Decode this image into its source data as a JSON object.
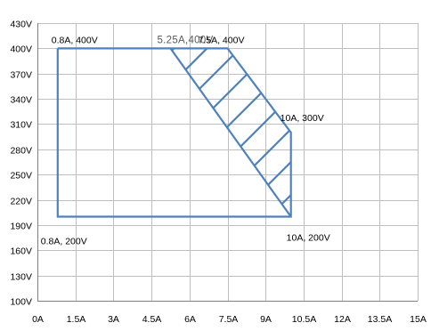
{
  "chart_data": {
    "type": "line",
    "title": "",
    "xlabel": "",
    "ylabel": "",
    "x_ticks": [
      "0A",
      "1.5A",
      "3A",
      "4.5A",
      "6A",
      "7.5A",
      "9A",
      "10.5A",
      "12A",
      "13.5A",
      "15A"
    ],
    "y_ticks": [
      "100V",
      "130V",
      "160V",
      "190V",
      "220V",
      "250V",
      "280V",
      "310V",
      "340V",
      "370V",
      "400V",
      "430V"
    ],
    "xlim": [
      0,
      15
    ],
    "ylim": [
      100,
      430
    ],
    "grid": true,
    "colors": {
      "series": "#4f81bd",
      "grid": "#bfbfbf",
      "axis": "#7f7f7f"
    },
    "series": [
      {
        "type": "polyline",
        "x": [
          0.8,
          5.25,
          7.5,
          10,
          10,
          0.8,
          0.8
        ],
        "y": [
          400,
          400,
          400,
          300,
          200,
          200,
          400
        ]
      },
      {
        "type": "hatched-region",
        "x": [
          5.25,
          7.5,
          10,
          10
        ],
        "y": [
          400,
          400,
          300,
          200
        ]
      }
    ],
    "annotations": [
      {
        "text": "0.8A, 400V",
        "x": 0.8,
        "y": 400,
        "style": "normal"
      },
      {
        "text": "5.25A,400V",
        "x": 5.25,
        "y": 400,
        "style": "grey"
      },
      {
        "text": "7.5A, 400V",
        "x": 7.5,
        "y": 400,
        "style": "normal"
      },
      {
        "text": "10A, 300V",
        "x": 10,
        "y": 300,
        "style": "normal"
      },
      {
        "text": "0.8A, 200V",
        "x": 0.8,
        "y": 200,
        "style": "normal"
      },
      {
        "text": "10A, 200V",
        "x": 10,
        "y": 200,
        "style": "normal"
      }
    ]
  }
}
